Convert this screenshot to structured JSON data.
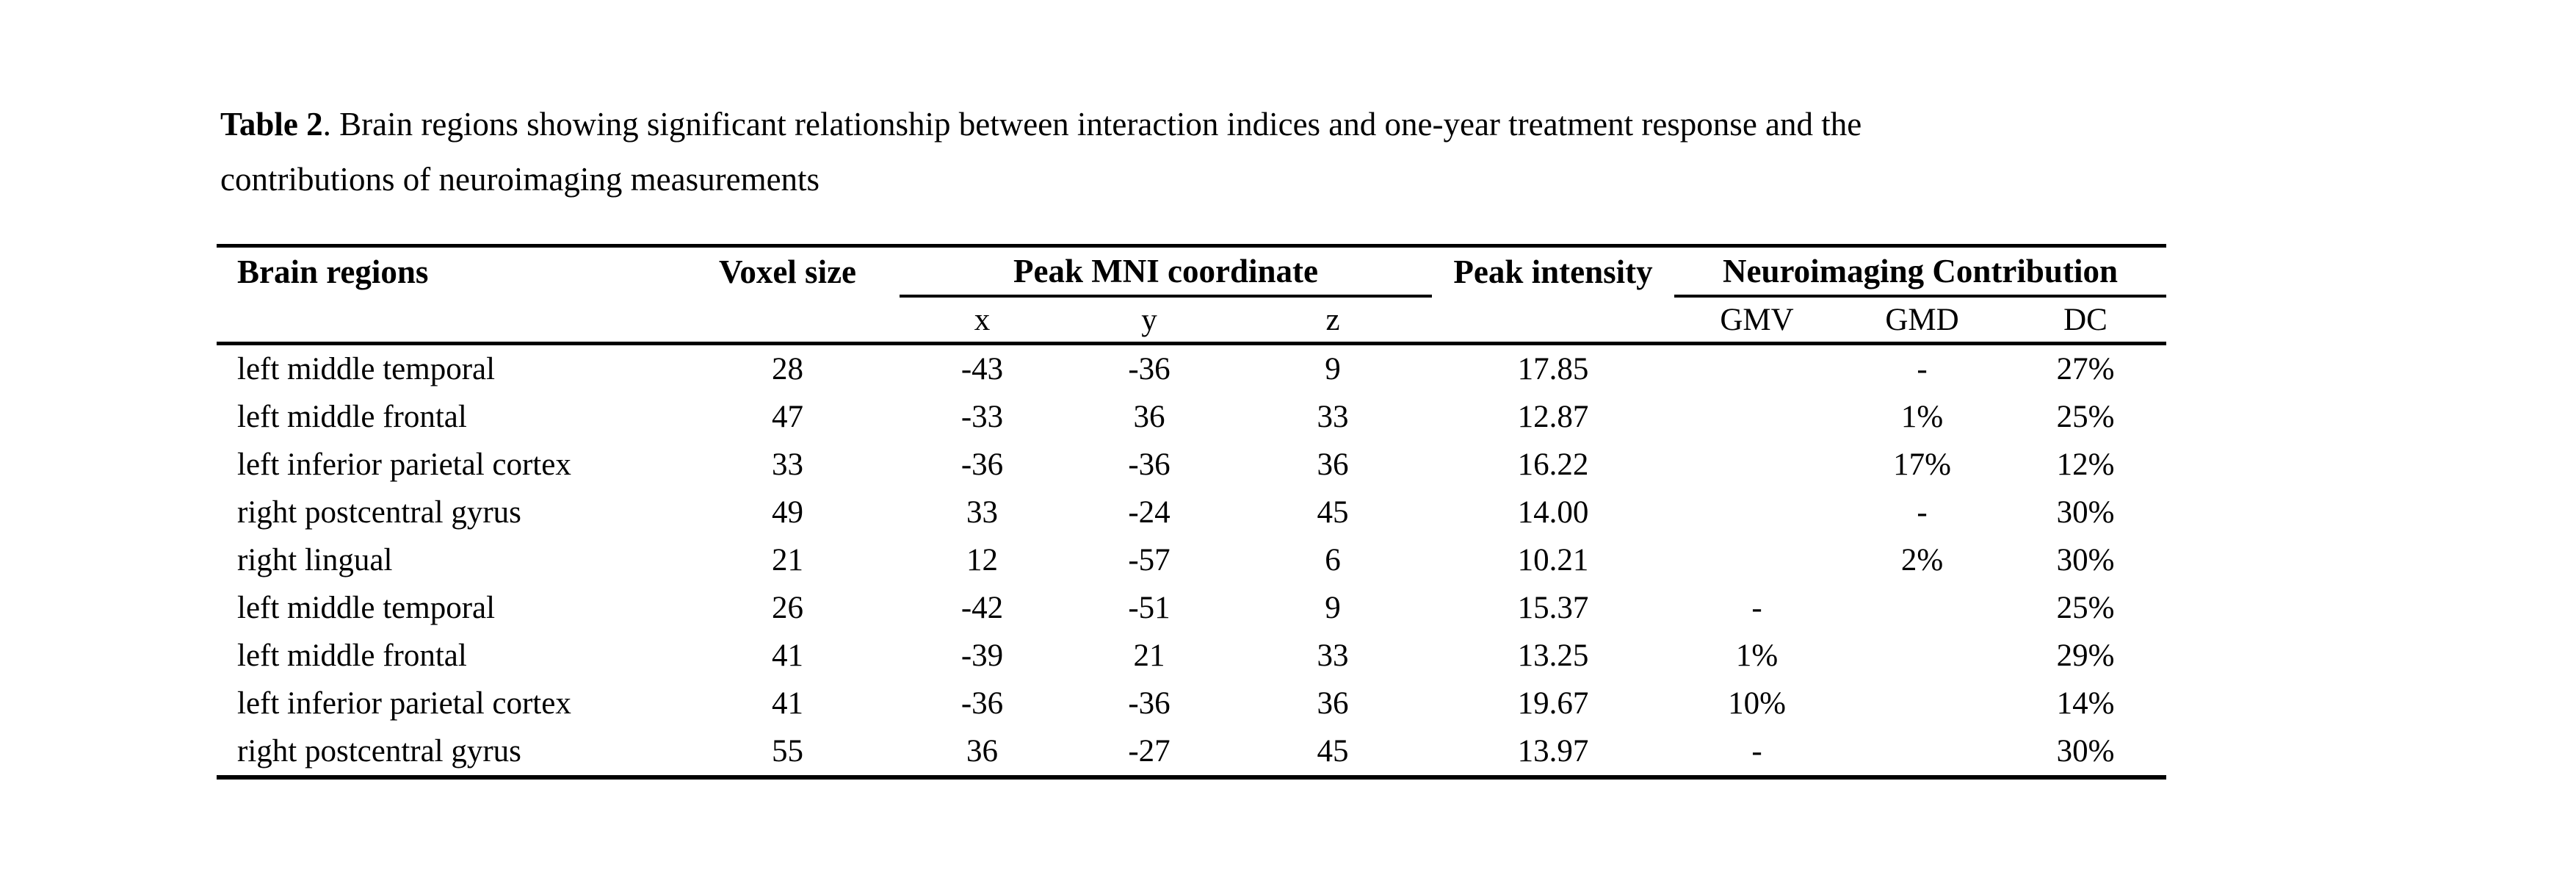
{
  "page": {
    "background": "#ffffff",
    "text_color": "#000000"
  },
  "caption": {
    "label": "Table 2",
    "line1_rest": ". Brain regions showing significant relationship between interaction indices and one-year treatment response and the",
    "line2": "contributions of neuroimaging measurements"
  },
  "table": {
    "headers": {
      "brain_regions": "Brain regions",
      "voxel_size": "Voxel size",
      "peak_mni_group": "Peak MNI coordinate",
      "peak_intensity": "Peak intensity",
      "neuroimaging_group": "Neuroimaging Contribution",
      "sub": {
        "x": "x",
        "y": "y",
        "z": "z",
        "gmv": "GMV",
        "gmd": "GMD",
        "dc": "DC"
      }
    },
    "rows": [
      {
        "region": "left middle temporal",
        "voxel": "28",
        "x": "-43",
        "y": "-36",
        "z": "9",
        "intensity": "17.85",
        "gmv": "",
        "gmd": "-",
        "dc": "27%"
      },
      {
        "region": "left middle frontal",
        "voxel": "47",
        "x": "-33",
        "y": "36",
        "z": "33",
        "intensity": "12.87",
        "gmv": "",
        "gmd": "1%",
        "dc": "25%"
      },
      {
        "region": "left inferior parietal cortex",
        "voxel": "33",
        "x": "-36",
        "y": "-36",
        "z": "36",
        "intensity": "16.22",
        "gmv": "",
        "gmd": "17%",
        "dc": "12%"
      },
      {
        "region": "right postcentral gyrus",
        "voxel": "49",
        "x": "33",
        "y": "-24",
        "z": "45",
        "intensity": "14.00",
        "gmv": "",
        "gmd": "-",
        "dc": "30%"
      },
      {
        "region": "right lingual",
        "voxel": "21",
        "x": "12",
        "y": "-57",
        "z": "6",
        "intensity": "10.21",
        "gmv": "",
        "gmd": "2%",
        "dc": "30%"
      },
      {
        "region": "left middle temporal",
        "voxel": "26",
        "x": "-42",
        "y": "-51",
        "z": "9",
        "intensity": "15.37",
        "gmv": "-",
        "gmd": "",
        "dc": "25%"
      },
      {
        "region": "left middle frontal",
        "voxel": "41",
        "x": "-39",
        "y": "21",
        "z": "33",
        "intensity": "13.25",
        "gmv": "1%",
        "gmd": "",
        "dc": "29%"
      },
      {
        "region": "left inferior parietal cortex",
        "voxel": "41",
        "x": "-36",
        "y": "-36",
        "z": "36",
        "intensity": "19.67",
        "gmv": "10%",
        "gmd": "",
        "dc": "14%"
      },
      {
        "region": "right postcentral gyrus",
        "voxel": "55",
        "x": "36",
        "y": "-27",
        "z": "45",
        "intensity": "13.97",
        "gmv": "-",
        "gmd": "",
        "dc": "30%"
      }
    ]
  }
}
